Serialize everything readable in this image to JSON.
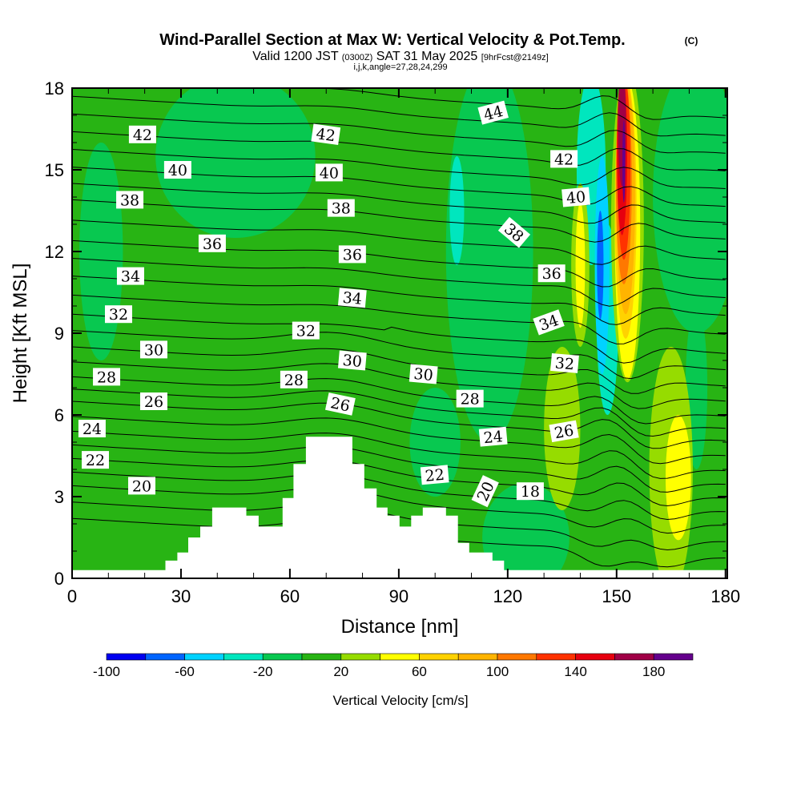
{
  "title": {
    "main": "Wind-Parallel Section at Max W: Vertical Velocity & Pot.Temp.",
    "copyright": "(C)",
    "valid": "Valid 1200 JST",
    "utc": "(0300Z)",
    "date": "SAT 31 May 2025",
    "forecast": "[9hrFcst@2149z]",
    "indices": "i,j,k,angle=27,28,24,299"
  },
  "chart_data": {
    "type": "contour",
    "xlabel": "Distance [nm]",
    "ylabel": "Height [Kft MSL]",
    "xlim": [
      0,
      180.5
    ],
    "ylim": [
      0,
      18
    ],
    "xticks": [
      "0",
      "30",
      "60",
      "90",
      "120",
      "150",
      "180"
    ],
    "yticks": [
      "0",
      "3",
      "6",
      "9",
      "12",
      "15",
      "18"
    ],
    "background_value": 10,
    "filled_field": "Vertical Velocity [cm/s]",
    "features": [
      {
        "value": -10,
        "cx": 115,
        "cy": 12,
        "rx": 12,
        "ry": 7
      },
      {
        "value": -10,
        "cx": 172,
        "cy": 14,
        "rx": 12,
        "ry": 5
      },
      {
        "value": -10,
        "cx": 45,
        "cy": 15.5,
        "rx": 22,
        "ry": 3
      },
      {
        "value": -10,
        "cx": 8,
        "cy": 12,
        "rx": 6,
        "ry": 4
      },
      {
        "value": -10,
        "cx": 125,
        "cy": 1.5,
        "rx": 12,
        "ry": 2
      },
      {
        "value": -10,
        "cx": 100,
        "cy": 5,
        "rx": 7,
        "ry": 2
      },
      {
        "value": -10,
        "cx": 172,
        "cy": 7,
        "rx": 3,
        "ry": 3
      },
      {
        "value": -30,
        "cx": 143,
        "cy": 15,
        "rx": 4,
        "ry": 3.5
      },
      {
        "value": -30,
        "cx": 106,
        "cy": 13.5,
        "rx": 2,
        "ry": 2
      },
      {
        "value": -30,
        "cx": 147.5,
        "cy": 9.5,
        "rx": 3,
        "ry": 3.5
      },
      {
        "value": -50,
        "cx": 146,
        "cy": 11.5,
        "rx": 2,
        "ry": 4
      },
      {
        "value": -70,
        "cx": 145.5,
        "cy": 11.5,
        "rx": 0.9,
        "ry": 2
      },
      {
        "value": 30,
        "cx": 165,
        "cy": 4,
        "rx": 6,
        "ry": 4.5
      },
      {
        "value": 50,
        "cx": 167,
        "cy": 3.7,
        "rx": 3.5,
        "ry": 2.3
      },
      {
        "value": 30,
        "cx": 135,
        "cy": 5.5,
        "rx": 5,
        "ry": 3
      },
      {
        "value": 30,
        "cx": 140,
        "cy": 11.5,
        "rx": 2.5,
        "ry": 3
      },
      {
        "value": 50,
        "cx": 140,
        "cy": 11.5,
        "rx": 1.3,
        "ry": 2.3
      },
      {
        "value": 30,
        "cx": 153,
        "cy": 13,
        "rx": 4.5,
        "ry": 5.8
      },
      {
        "value": 50,
        "cx": 153,
        "cy": 12.8,
        "rx": 3.5,
        "ry": 5.5
      },
      {
        "value": 70,
        "cx": 152.5,
        "cy": 13.6,
        "rx": 3,
        "ry": 4.8
      },
      {
        "value": 90,
        "cx": 152.5,
        "cy": 14,
        "rx": 2.6,
        "ry": 4.3
      },
      {
        "value": 110,
        "cx": 152,
        "cy": 14.6,
        "rx": 2.2,
        "ry": 3.8
      },
      {
        "value": 130,
        "cx": 152,
        "cy": 15.1,
        "rx": 1.8,
        "ry": 3.4
      },
      {
        "value": 150,
        "cx": 151.5,
        "cy": 15.6,
        "rx": 1.4,
        "ry": 3
      },
      {
        "value": 170,
        "cx": 151.5,
        "cy": 16.6,
        "rx": 1.1,
        "ry": 2.2
      },
      {
        "value": 190,
        "cx": 152,
        "cy": 15.3,
        "rx": 0.4,
        "ry": 1.5
      }
    ],
    "terrain": [
      [
        0,
        0.3
      ],
      [
        25.7,
        0.3
      ],
      [
        25.7,
        0.65
      ],
      [
        29,
        0.65
      ],
      [
        29,
        0.95
      ],
      [
        32,
        0.95
      ],
      [
        32,
        1.5
      ],
      [
        35.3,
        1.5
      ],
      [
        35.3,
        1.9
      ],
      [
        38.6,
        1.9
      ],
      [
        38.6,
        2.6
      ],
      [
        48,
        2.6
      ],
      [
        48,
        2.3
      ],
      [
        51.4,
        2.3
      ],
      [
        51.4,
        1.9
      ],
      [
        58,
        1.9
      ],
      [
        58,
        2.95
      ],
      [
        61,
        2.95
      ],
      [
        61,
        4.2
      ],
      [
        64.4,
        4.2
      ],
      [
        64.4,
        5.2
      ],
      [
        77.2,
        5.2
      ],
      [
        77.2,
        4.2
      ],
      [
        80.5,
        4.2
      ],
      [
        80.5,
        3.3
      ],
      [
        83.9,
        3.3
      ],
      [
        83.9,
        2.6
      ],
      [
        86.9,
        2.6
      ],
      [
        86.9,
        2.3
      ],
      [
        90.2,
        2.3
      ],
      [
        90.2,
        1.9
      ],
      [
        93.4,
        1.9
      ],
      [
        93.4,
        2.3
      ],
      [
        96.6,
        2.3
      ],
      [
        96.6,
        2.6
      ],
      [
        103,
        2.6
      ],
      [
        103,
        2.3
      ],
      [
        106.3,
        2.3
      ],
      [
        106.3,
        1.3
      ],
      [
        109.4,
        1.3
      ],
      [
        109.4,
        0.95
      ],
      [
        115.8,
        0.95
      ],
      [
        115.8,
        0.65
      ],
      [
        119,
        0.65
      ],
      [
        119,
        0.3
      ],
      [
        180.5,
        0.3
      ]
    ],
    "isentropes": {
      "min": 18,
      "max": 45,
      "step": 1,
      "units": "deg C (pot. temp.)"
    },
    "contour_labels": [
      {
        "text": "42",
        "x": 19.4,
        "y": 16.3,
        "angle": 0
      },
      {
        "text": "40",
        "x": 29.1,
        "y": 15.0,
        "angle": 0
      },
      {
        "text": "38",
        "x": 15.9,
        "y": 13.9,
        "angle": 0
      },
      {
        "text": "36",
        "x": 38.6,
        "y": 12.3,
        "angle": 0
      },
      {
        "text": "34",
        "x": 16.1,
        "y": 11.1,
        "angle": 0
      },
      {
        "text": "32",
        "x": 12.8,
        "y": 9.7,
        "angle": 0
      },
      {
        "text": "30",
        "x": 22.5,
        "y": 8.4,
        "angle": 0
      },
      {
        "text": "28",
        "x": 9.5,
        "y": 7.4,
        "angle": 0
      },
      {
        "text": "26",
        "x": 22.5,
        "y": 6.5,
        "angle": 0
      },
      {
        "text": "24",
        "x": 5.5,
        "y": 5.5,
        "angle": 0
      },
      {
        "text": "22",
        "x": 6.4,
        "y": 4.35,
        "angle": 0
      },
      {
        "text": "20",
        "x": 19.2,
        "y": 3.4,
        "angle": 0
      },
      {
        "text": "42",
        "x": 69.9,
        "y": 16.3,
        "angle": 8
      },
      {
        "text": "40",
        "x": 70.8,
        "y": 14.9,
        "angle": 0
      },
      {
        "text": "38",
        "x": 74.1,
        "y": 13.6,
        "angle": 0
      },
      {
        "text": "36",
        "x": 77.2,
        "y": 11.9,
        "angle": 0
      },
      {
        "text": "34",
        "x": 77.2,
        "y": 10.3,
        "angle": 5
      },
      {
        "text": "32",
        "x": 64.4,
        "y": 9.1,
        "angle": 0
      },
      {
        "text": "30",
        "x": 77.2,
        "y": 8.0,
        "angle": 5
      },
      {
        "text": "28",
        "x": 61.1,
        "y": 7.3,
        "angle": 0
      },
      {
        "text": "26",
        "x": 73.9,
        "y": 6.4,
        "angle": 12
      },
      {
        "text": "30",
        "x": 96.8,
        "y": 7.5,
        "angle": 5
      },
      {
        "text": "28",
        "x": 109.6,
        "y": 6.6,
        "angle": 0
      },
      {
        "text": "24",
        "x": 116,
        "y": 5.2,
        "angle": -5
      },
      {
        "text": "22",
        "x": 99.9,
        "y": 3.8,
        "angle": -5
      },
      {
        "text": "20",
        "x": 113.8,
        "y": 3.2,
        "angle": -65
      },
      {
        "text": "18",
        "x": 126.2,
        "y": 3.2,
        "angle": 0
      },
      {
        "text": "44",
        "x": 116,
        "y": 17.1,
        "angle": -15
      },
      {
        "text": "42",
        "x": 135.5,
        "y": 15.4,
        "angle": 0
      },
      {
        "text": "40",
        "x": 138.8,
        "y": 14.0,
        "angle": -5
      },
      {
        "text": "38",
        "x": 121.8,
        "y": 12.7,
        "angle": 40
      },
      {
        "text": "36",
        "x": 132.1,
        "y": 11.2,
        "angle": 0
      },
      {
        "text": "34",
        "x": 131.3,
        "y": 9.4,
        "angle": -20
      },
      {
        "text": "32",
        "x": 135.7,
        "y": 7.9,
        "angle": 5
      },
      {
        "text": "26",
        "x": 135.5,
        "y": 5.4,
        "angle": -10
      }
    ],
    "colorbar": {
      "label": "Vertical Velocity [cm/s]",
      "bounds": [
        -100,
        200
      ],
      "step": 20,
      "colors": [
        "#0000f0",
        "#0064ff",
        "#00d2ff",
        "#00e6be",
        "#08c850",
        "#28b414",
        "#96dc00",
        "#ffff00",
        "#ffd200",
        "#ffb400",
        "#ff7800",
        "#ff3200",
        "#e6000f",
        "#a00046",
        "#64008c"
      ],
      "tick_labels": [
        "-100",
        "-60",
        "-20",
        "20",
        "60",
        "100",
        "140",
        "180"
      ]
    }
  }
}
